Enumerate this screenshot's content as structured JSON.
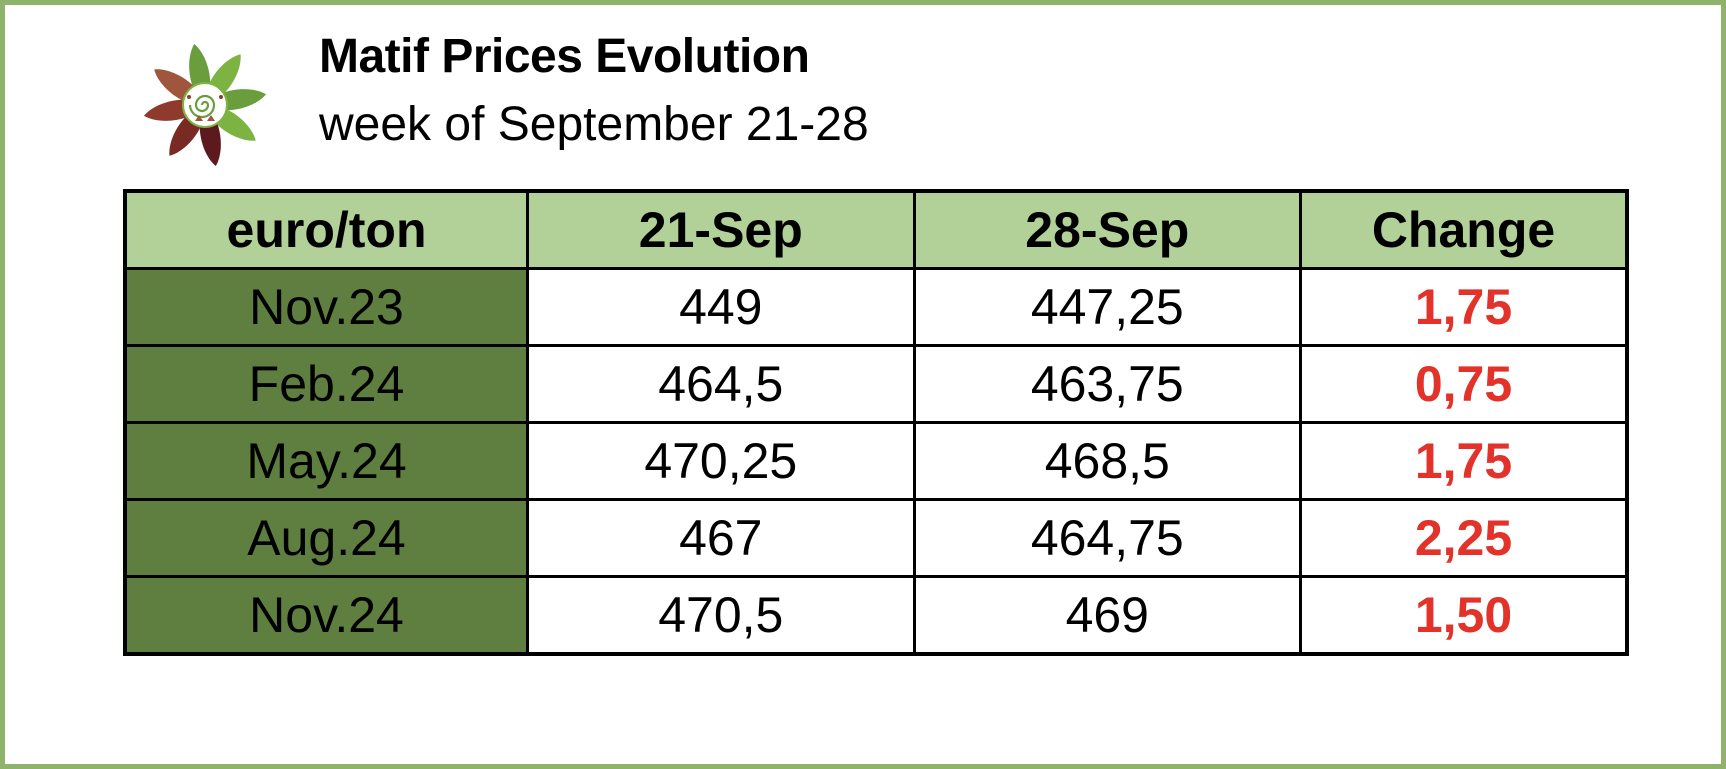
{
  "header": {
    "title": "Matif Prices Evolution",
    "subtitle": "week of September 21-28",
    "logo_icon": "flower-logo-icon"
  },
  "table": {
    "columns": [
      "euro/ton",
      "21-Sep",
      "28-Sep",
      "Change"
    ],
    "rows": [
      {
        "label": "Nov.23",
        "sep21": "449",
        "sep28": "447,25",
        "change": "1,75"
      },
      {
        "label": "Feb.24",
        "sep21": "464,5",
        "sep28": "463,75",
        "change": "0,75"
      },
      {
        "label": "May.24",
        "sep21": "470,25",
        "sep28": "468,5",
        "change": "1,75"
      },
      {
        "label": "Aug.24",
        "sep21": "467",
        "sep28": "464,75",
        "change": "2,25"
      },
      {
        "label": "Nov.24",
        "sep21": "470,5",
        "sep28": "469",
        "change": "1,50"
      }
    ]
  },
  "colors": {
    "frame_border": "#8fb36b",
    "header_fill": "#b2d198",
    "label_fill": "#5e7f3f",
    "change_text": "#e2322a"
  }
}
